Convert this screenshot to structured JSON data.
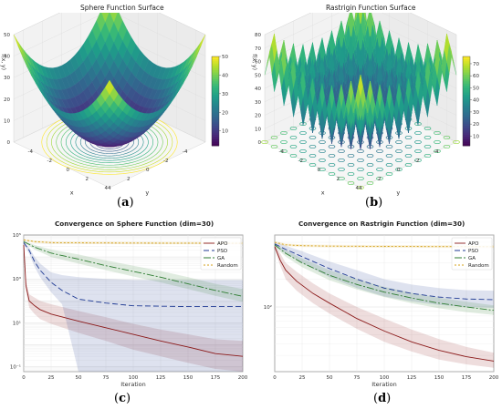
{
  "figure": {
    "label_open": "(",
    "label_close": ")",
    "panel_labels": [
      "a",
      "b",
      "c",
      "d"
    ]
  },
  "chart_data": [
    {
      "type": "surface",
      "title": "Sphere Function Surface",
      "xlabel": "x",
      "ylabel": "y",
      "zlabel": "f(x, y)",
      "x_ticks": [
        "-4",
        "-2",
        "0",
        "2",
        "4"
      ],
      "y_ticks": [
        "-4",
        "-2",
        "0",
        "2",
        "4"
      ],
      "z_ticks": [
        "0",
        "10",
        "20",
        "30",
        "40",
        "50"
      ],
      "zlim": [
        0,
        50
      ],
      "colorbar_ticks": [
        "10",
        "20",
        "30",
        "40",
        "50"
      ],
      "colormap": "viridis",
      "contour_projection": true
    },
    {
      "type": "surface",
      "title": "Rastrigin Function Surface",
      "xlabel": "x",
      "ylabel": "y",
      "zlabel": "f(x, y)",
      "x_ticks": [
        "-4",
        "-2",
        "0",
        "2",
        "4"
      ],
      "y_ticks": [
        "-4",
        "-2",
        "0",
        "2",
        "4"
      ],
      "z_ticks": [
        "0",
        "10",
        "20",
        "30",
        "40",
        "50",
        "60",
        "70",
        "80"
      ],
      "zlim": [
        0,
        80
      ],
      "colorbar_ticks": [
        "10",
        "20",
        "30",
        "40",
        "50",
        "60",
        "70"
      ],
      "colormap": "viridis",
      "contour_projection": true
    },
    {
      "type": "line",
      "title": "Convergence on Sphere Function (dim=30)",
      "xlabel": "Iteration",
      "ylabel": "",
      "log_y": true,
      "xlim": [
        0,
        200
      ],
      "ylim": [
        0.06,
        100000
      ],
      "x_ticks": [
        0,
        25,
        50,
        75,
        100,
        125,
        150,
        175,
        200
      ],
      "y_ticks": [
        {
          "v": 100000,
          "t": "10⁵"
        },
        {
          "v": 1000,
          "t": "10³"
        },
        {
          "v": 10,
          "t": "10¹"
        },
        {
          "v": 0.1,
          "t": "10⁻¹"
        }
      ],
      "legend_position": "top-right",
      "grid": true,
      "series": [
        {
          "name": "APO",
          "color": "#8b1a1a",
          "dash": "solid",
          "x": [
            0,
            2,
            5,
            10,
            15,
            25,
            50,
            75,
            100,
            125,
            150,
            175,
            200
          ],
          "y": [
            35000,
            500,
            100,
            60,
            40,
            25,
            12,
            6,
            3,
            1.5,
            0.8,
            0.4,
            0.3
          ],
          "band_low": [
            30000,
            300,
            50,
            25,
            15,
            9,
            3.5,
            1.5,
            0.6,
            0.3,
            0.15,
            0.08,
            0.06
          ],
          "band_high": [
            40000,
            800,
            200,
            140,
            100,
            70,
            35,
            18,
            9,
            5,
            3,
            1.8,
            1.5
          ]
        },
        {
          "name": "PSO",
          "color": "#1f3a93",
          "dash": "6,3",
          "x": [
            0,
            5,
            10,
            15,
            25,
            35,
            50,
            75,
            100,
            150,
            200
          ],
          "y": [
            45000,
            20000,
            6000,
            2500,
            700,
            300,
            120,
            80,
            60,
            55,
            55
          ],
          "band_low": [
            40000,
            14000,
            3500,
            1200,
            250,
            70,
            0.06,
            0.06,
            0.06,
            0.06,
            0.06
          ],
          "band_high": [
            50000,
            27000,
            10000,
            5000,
            2000,
            1500,
            1200,
            1000,
            900,
            900,
            900
          ]
        },
        {
          "name": "GA",
          "color": "#2e7d32",
          "dash": "8,2,2,2",
          "x": [
            0,
            10,
            25,
            50,
            75,
            100,
            125,
            150,
            175,
            200
          ],
          "y": [
            50000,
            28000,
            15000,
            8000,
            4000,
            2200,
            1200,
            600,
            300,
            160
          ],
          "band_low": [
            45000,
            22000,
            10000,
            5000,
            2500,
            1300,
            700,
            350,
            170,
            90
          ],
          "band_high": [
            55000,
            35000,
            22000,
            13000,
            7000,
            4000,
            2300,
            1200,
            600,
            350
          ]
        },
        {
          "name": "Random",
          "color": "#d4a017",
          "dash": "2,2",
          "x": [
            0,
            10,
            25,
            50,
            100,
            150,
            200
          ],
          "y": [
            60000,
            50000,
            45000,
            44000,
            43000,
            42500,
            42000
          ],
          "band_low": [
            55000,
            44000,
            40000,
            39000,
            38000,
            38000,
            37500
          ],
          "band_high": [
            65000,
            56000,
            51000,
            50000,
            49000,
            48000,
            47500
          ]
        }
      ]
    },
    {
      "type": "line",
      "title": "Convergence on Rastrigin Function (dim=30)",
      "xlabel": "Iteration",
      "ylabel": "",
      "log_y": true,
      "xlim": [
        0,
        200
      ],
      "ylim": [
        20,
        600
      ],
      "x_ticks": [
        0,
        25,
        50,
        75,
        100,
        125,
        150,
        175,
        200
      ],
      "y_ticks": [
        {
          "v": 100,
          "t": "10²"
        }
      ],
      "legend_position": "top-right",
      "grid": true,
      "series": [
        {
          "name": "APO",
          "color": "#8b1a1a",
          "dash": "solid",
          "x": [
            0,
            5,
            10,
            20,
            35,
            50,
            75,
            100,
            125,
            150,
            175,
            200
          ],
          "y": [
            450,
            320,
            250,
            190,
            140,
            110,
            75,
            55,
            42,
            34,
            29,
            26
          ],
          "band_low": [
            420,
            280,
            200,
            150,
            110,
            85,
            58,
            42,
            33,
            27,
            24,
            22
          ],
          "band_high": [
            480,
            380,
            300,
            240,
            180,
            140,
            100,
            75,
            57,
            45,
            37,
            32
          ]
        },
        {
          "name": "PSO",
          "color": "#1f3a93",
          "dash": "6,3",
          "x": [
            0,
            10,
            25,
            50,
            75,
            100,
            125,
            150,
            175,
            200
          ],
          "y": [
            480,
            420,
            350,
            260,
            200,
            160,
            140,
            128,
            122,
            120
          ],
          "band_low": [
            460,
            380,
            300,
            210,
            160,
            130,
            115,
            105,
            100,
            98
          ],
          "band_high": [
            500,
            460,
            400,
            310,
            250,
            200,
            175,
            160,
            152,
            150
          ]
        },
        {
          "name": "GA",
          "color": "#2e7d32",
          "dash": "8,2,2,2",
          "x": [
            0,
            10,
            25,
            50,
            75,
            100,
            125,
            150,
            175,
            200
          ],
          "y": [
            470,
            380,
            300,
            220,
            175,
            145,
            125,
            110,
            100,
            92
          ],
          "band_low": [
            450,
            350,
            270,
            195,
            155,
            128,
            110,
            97,
            88,
            82
          ],
          "band_high": [
            490,
            410,
            335,
            250,
            200,
            165,
            142,
            126,
            114,
            104
          ]
        },
        {
          "name": "Random",
          "color": "#d4a017",
          "dash": "2,2",
          "x": [
            0,
            10,
            25,
            50,
            100,
            150,
            200
          ],
          "y": [
            500,
            470,
            460,
            455,
            452,
            450,
            449
          ],
          "band_low": [
            485,
            455,
            445,
            440,
            437,
            435,
            434
          ],
          "band_high": [
            515,
            485,
            475,
            470,
            467,
            465,
            464
          ]
        }
      ]
    }
  ]
}
